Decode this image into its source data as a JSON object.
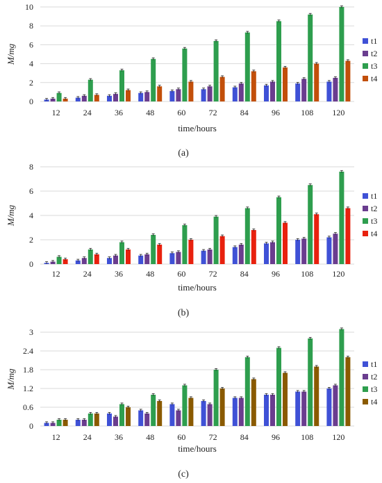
{
  "colors": {
    "t1": "#3F51D6",
    "t2": "#6A3D8F",
    "t3": "#2E9E4E",
    "t4_a": "#C24F0A",
    "t4_b": "#E8210E",
    "t4_c": "#8A5A00",
    "grid": "#DADADA",
    "errorbar": "#222222"
  },
  "chart_data": [
    {
      "type": "bar",
      "panel_label": "(a)",
      "categories": [
        "12",
        "24",
        "36",
        "48",
        "60",
        "72",
        "84",
        "96",
        "108",
        "120"
      ],
      "xlabel": "time/hours",
      "ylabel": "M/mg",
      "ylim": [
        0,
        10
      ],
      "yticks": [
        "0",
        "2",
        "4",
        "6",
        "8",
        "10"
      ],
      "grid": true,
      "legend_position": "right",
      "series": [
        {
          "name": "t1",
          "values": [
            0.2,
            0.4,
            0.6,
            0.9,
            1.1,
            1.3,
            1.5,
            1.7,
            1.9,
            2.1
          ]
        },
        {
          "name": "t2",
          "values": [
            0.3,
            0.6,
            0.8,
            1.0,
            1.3,
            1.6,
            1.9,
            2.1,
            2.4,
            2.5
          ]
        },
        {
          "name": "t3",
          "values": [
            0.9,
            2.3,
            3.3,
            4.5,
            5.6,
            6.4,
            7.3,
            8.5,
            9.2,
            10.0
          ]
        },
        {
          "name": "t4",
          "values": [
            0.3,
            0.7,
            1.2,
            1.6,
            2.1,
            2.6,
            3.2,
            3.6,
            4.0,
            4.3
          ]
        }
      ]
    },
    {
      "type": "bar",
      "panel_label": "(b)",
      "categories": [
        "12",
        "24",
        "36",
        "48",
        "60",
        "72",
        "84",
        "96",
        "108",
        "120"
      ],
      "xlabel": "time/hours",
      "ylabel": "M/mg",
      "ylim": [
        0,
        8
      ],
      "yticks": [
        "0",
        "2",
        "4",
        "6",
        "8"
      ],
      "grid": true,
      "legend_position": "right",
      "series": [
        {
          "name": "t1",
          "values": [
            0.1,
            0.3,
            0.5,
            0.7,
            0.9,
            1.1,
            1.4,
            1.7,
            2.0,
            2.2
          ]
        },
        {
          "name": "t2",
          "values": [
            0.2,
            0.5,
            0.7,
            0.8,
            1.0,
            1.2,
            1.6,
            1.8,
            2.1,
            2.5
          ]
        },
        {
          "name": "t3",
          "values": [
            0.6,
            1.2,
            1.8,
            2.4,
            3.2,
            3.9,
            4.6,
            5.5,
            6.5,
            7.6
          ]
        },
        {
          "name": "t4",
          "values": [
            0.4,
            0.8,
            1.2,
            1.6,
            2.0,
            2.3,
            2.8,
            3.4,
            4.1,
            4.6
          ]
        }
      ]
    },
    {
      "type": "bar",
      "panel_label": "(c)",
      "categories": [
        "12",
        "24",
        "36",
        "48",
        "60",
        "72",
        "84",
        "96",
        "108",
        "120"
      ],
      "xlabel": "time/hours",
      "ylabel": "M/mg",
      "ylim": [
        0,
        3
      ],
      "yticks": [
        "0",
        "0.6",
        "1.2",
        "1.8",
        "2.4",
        "3"
      ],
      "grid": true,
      "legend_position": "right",
      "series": [
        {
          "name": "t1",
          "values": [
            0.1,
            0.2,
            0.4,
            0.5,
            0.7,
            0.8,
            0.9,
            1.0,
            1.1,
            1.2
          ]
        },
        {
          "name": "t2",
          "values": [
            0.1,
            0.2,
            0.3,
            0.4,
            0.5,
            0.7,
            0.9,
            1.0,
            1.1,
            1.3
          ]
        },
        {
          "name": "t3",
          "values": [
            0.2,
            0.4,
            0.7,
            1.0,
            1.3,
            1.8,
            2.2,
            2.5,
            2.8,
            3.1
          ]
        },
        {
          "name": "t4",
          "values": [
            0.2,
            0.4,
            0.6,
            0.8,
            0.9,
            1.2,
            1.5,
            1.7,
            1.9,
            2.2
          ]
        }
      ]
    }
  ]
}
